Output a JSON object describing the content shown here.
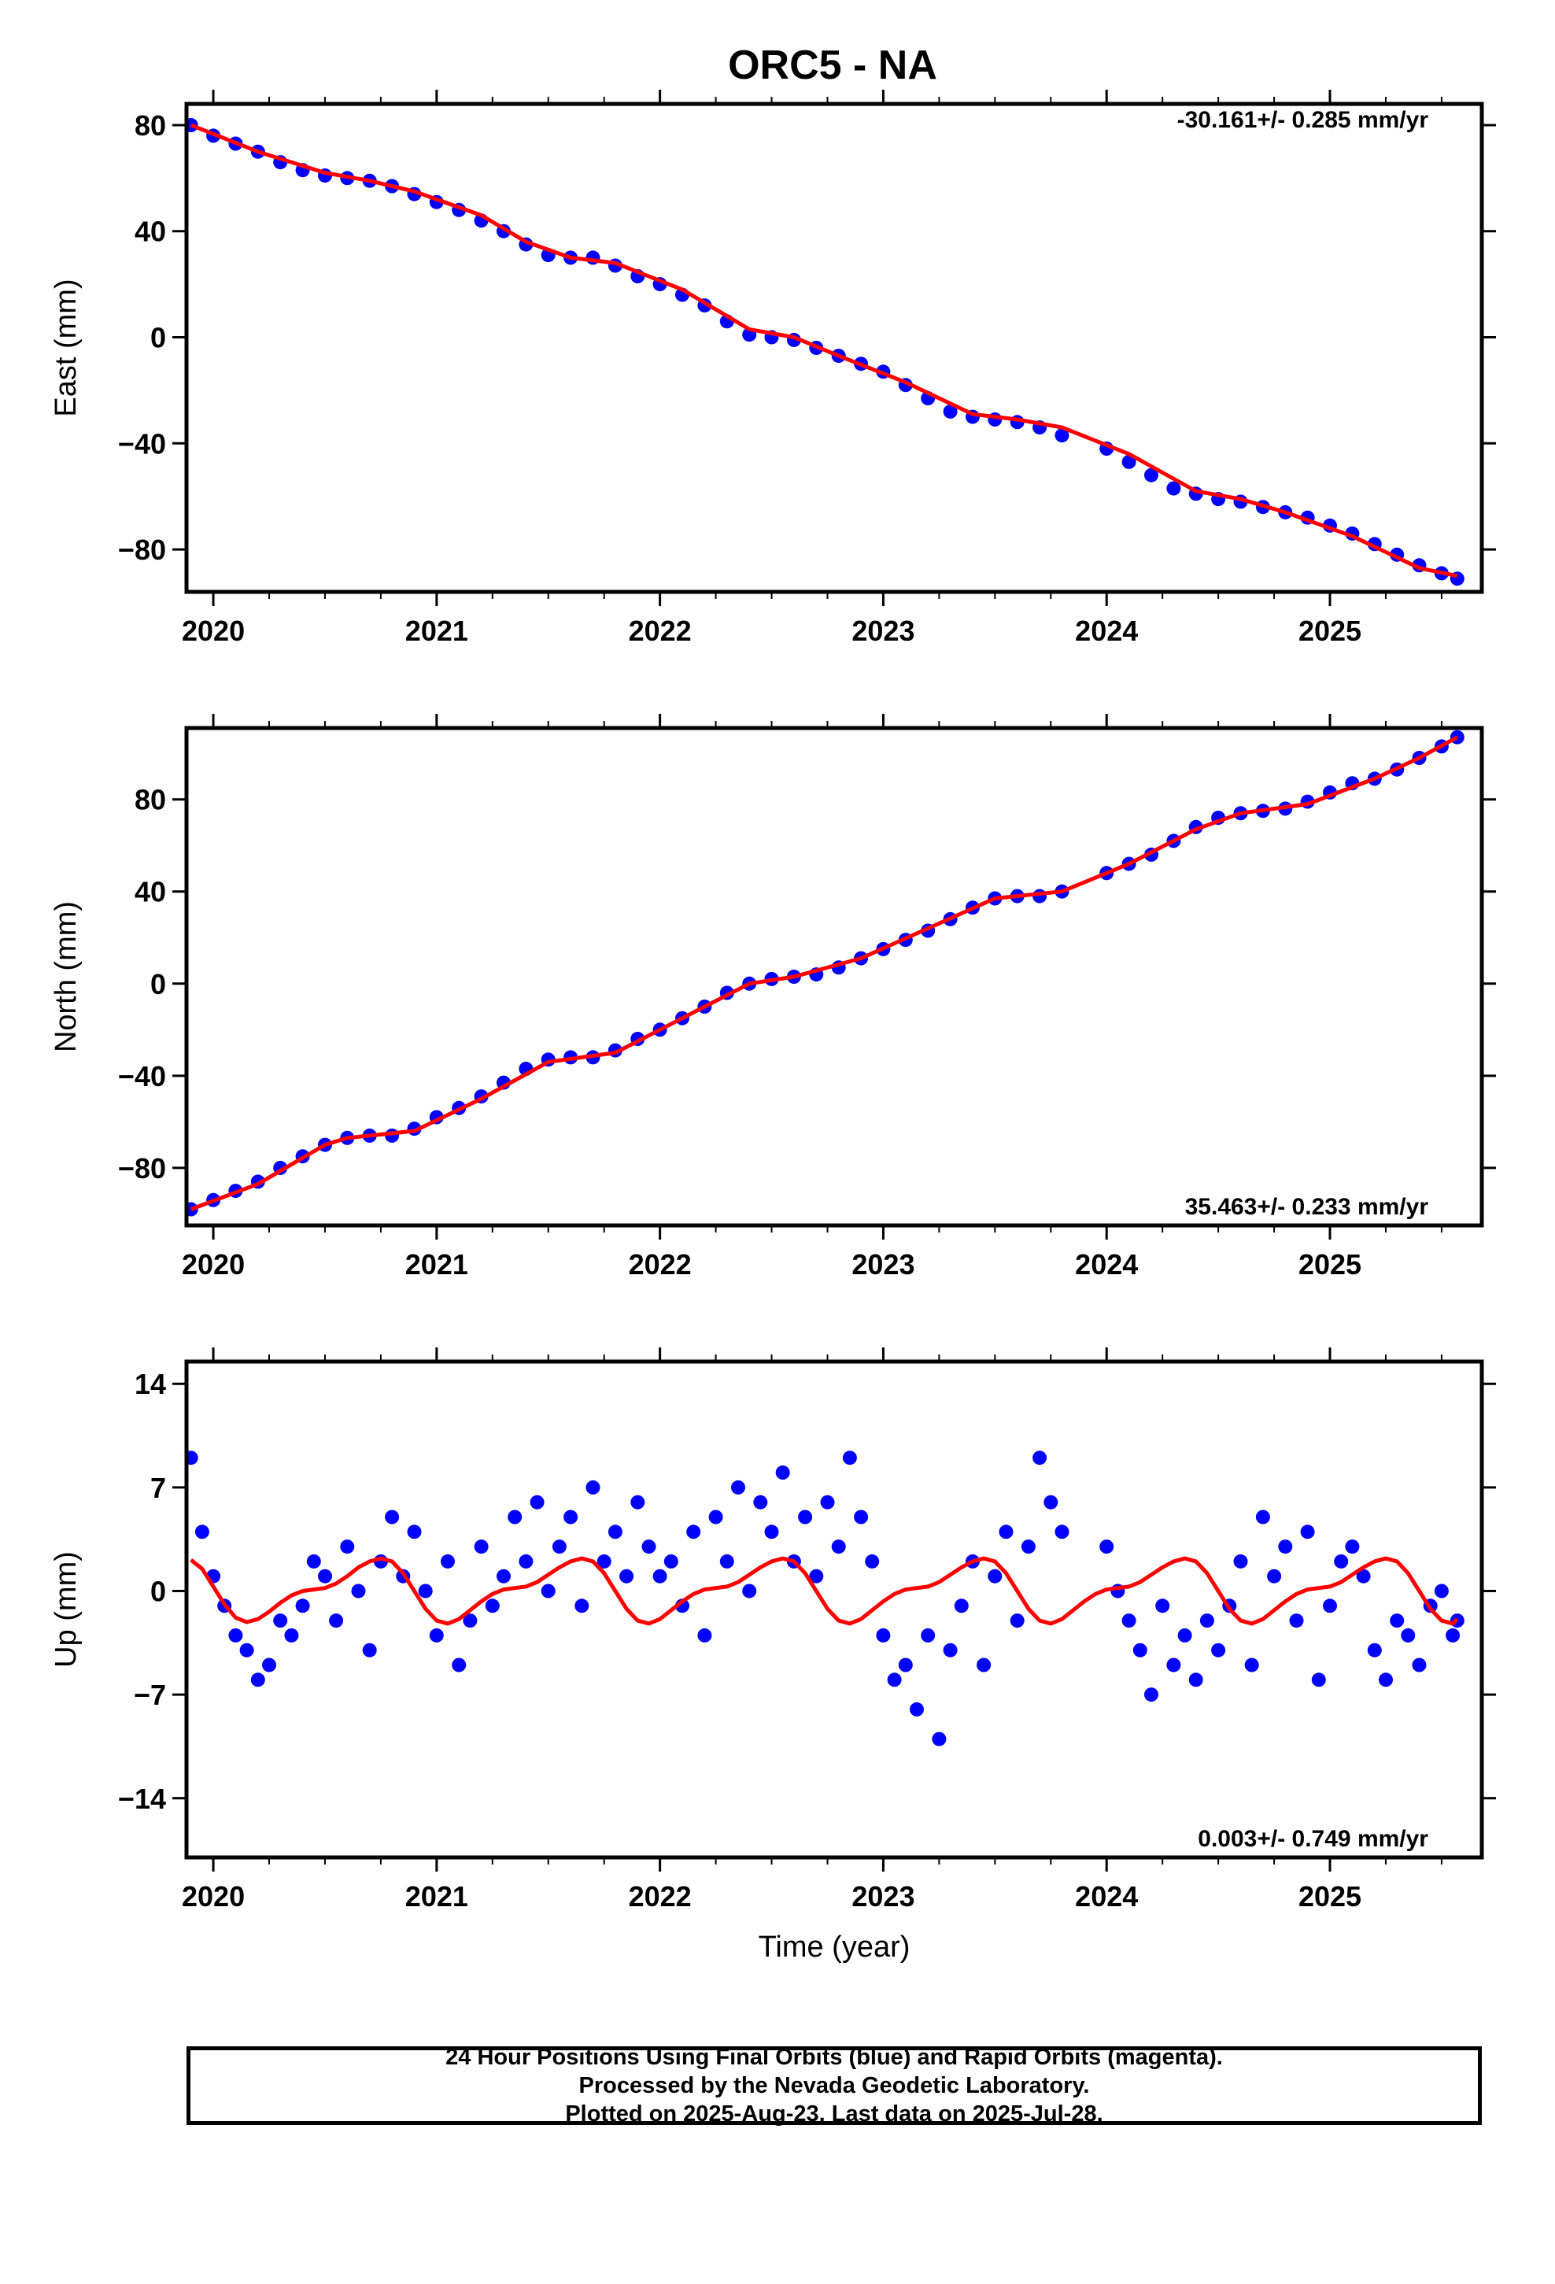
{
  "title": "ORC5 - NA",
  "colors": {
    "points": "#0000ff",
    "fit": "#ff0000",
    "frame": "#000000"
  },
  "chart_data": [
    {
      "type": "scatter",
      "ylabel": "East (mm)",
      "xlabel": "",
      "xlim": [
        2019.88,
        2025.68
      ],
      "ylim": [
        -96,
        88
      ],
      "xticks": [
        2020,
        2021,
        2022,
        2023,
        2024,
        2025
      ],
      "yticks": [
        80,
        40,
        0,
        -40,
        -80
      ],
      "rate_text": "-30.161+/- 0.285 mm/yr",
      "rate_position": "top-right",
      "series": [
        {
          "role": "observations",
          "x": [
            2019.9,
            2020.0,
            2020.1,
            2020.2,
            2020.3,
            2020.4,
            2020.5,
            2020.6,
            2020.7,
            2020.8,
            2020.9,
            2021.0,
            2021.1,
            2021.2,
            2021.3,
            2021.4,
            2021.5,
            2021.6,
            2021.7,
            2021.8,
            2021.9,
            2022.0,
            2022.1,
            2022.2,
            2022.3,
            2022.4,
            2022.5,
            2022.6,
            2022.7,
            2022.8,
            2022.9,
            2023.0,
            2023.1,
            2023.2,
            2023.3,
            2023.4,
            2023.5,
            2023.6,
            2023.7,
            2023.8,
            2024.0,
            2024.1,
            2024.2,
            2024.3,
            2024.4,
            2024.5,
            2024.6,
            2024.7,
            2024.8,
            2024.9,
            2025.0,
            2025.1,
            2025.2,
            2025.3,
            2025.4,
            2025.5,
            2025.57
          ],
          "y": [
            80,
            76,
            73,
            70,
            66,
            63,
            61,
            60,
            59,
            57,
            54,
            51,
            48,
            44,
            40,
            35,
            31,
            30,
            30,
            27,
            23,
            20,
            16,
            12,
            6,
            1,
            0,
            -1,
            -4,
            -7,
            -10,
            -13,
            -18,
            -23,
            -28,
            -30,
            -31,
            -32,
            -34,
            -37,
            -42,
            -47,
            -52,
            -57,
            -59,
            -61,
            -62,
            -64,
            -66,
            -68,
            -71,
            -74,
            -78,
            -82,
            -86,
            -89,
            -91
          ]
        },
        {
          "role": "fit",
          "x": [
            2019.9,
            2020.2,
            2020.5,
            2020.7,
            2020.9,
            2021.2,
            2021.4,
            2021.6,
            2021.8,
            2022.1,
            2022.4,
            2022.6,
            2022.8,
            2023.1,
            2023.4,
            2023.6,
            2023.8,
            2024.1,
            2024.4,
            2024.6,
            2024.8,
            2025.1,
            2025.4,
            2025.57
          ],
          "y": [
            80,
            70,
            62,
            59,
            55,
            46,
            36,
            30,
            28,
            18,
            3,
            0,
            -7,
            -17,
            -29,
            -31,
            -34,
            -44,
            -58,
            -61,
            -66,
            -75,
            -87,
            -90
          ]
        }
      ]
    },
    {
      "type": "scatter",
      "ylabel": "North (mm)",
      "xlabel": "",
      "xlim": [
        2019.88,
        2025.68
      ],
      "ylim": [
        -105,
        111
      ],
      "xticks": [
        2020,
        2021,
        2022,
        2023,
        2024,
        2025
      ],
      "yticks": [
        80,
        40,
        0,
        -40,
        -80
      ],
      "rate_text": "35.463+/- 0.233 mm/yr",
      "rate_position": "bottom-right",
      "series": [
        {
          "role": "observations",
          "x": [
            2019.9,
            2020.0,
            2020.1,
            2020.2,
            2020.3,
            2020.4,
            2020.5,
            2020.6,
            2020.7,
            2020.8,
            2020.9,
            2021.0,
            2021.1,
            2021.2,
            2021.3,
            2021.4,
            2021.5,
            2021.6,
            2021.7,
            2021.8,
            2021.9,
            2022.0,
            2022.1,
            2022.2,
            2022.3,
            2022.4,
            2022.5,
            2022.6,
            2022.7,
            2022.8,
            2022.9,
            2023.0,
            2023.1,
            2023.2,
            2023.3,
            2023.4,
            2023.5,
            2023.6,
            2023.7,
            2023.8,
            2024.0,
            2024.1,
            2024.2,
            2024.3,
            2024.4,
            2024.5,
            2024.6,
            2024.7,
            2024.8,
            2024.9,
            2025.0,
            2025.1,
            2025.2,
            2025.3,
            2025.4,
            2025.5,
            2025.57
          ],
          "y": [
            -98,
            -94,
            -90,
            -86,
            -80,
            -75,
            -70,
            -67,
            -66,
            -66,
            -63,
            -58,
            -54,
            -49,
            -43,
            -37,
            -33,
            -32,
            -32,
            -29,
            -24,
            -20,
            -15,
            -10,
            -4,
            0,
            2,
            3,
            4,
            7,
            11,
            15,
            19,
            23,
            28,
            33,
            37,
            38,
            38,
            40,
            48,
            52,
            56,
            62,
            68,
            72,
            74,
            75,
            76,
            79,
            83,
            87,
            89,
            93,
            98,
            103,
            107
          ]
        },
        {
          "role": "fit",
          "x": [
            2019.9,
            2020.2,
            2020.5,
            2020.6,
            2020.9,
            2021.2,
            2021.5,
            2021.8,
            2022.1,
            2022.4,
            2022.6,
            2022.9,
            2023.2,
            2023.5,
            2023.8,
            2024.1,
            2024.4,
            2024.6,
            2024.9,
            2025.2,
            2025.4,
            2025.57
          ],
          "y": [
            -98,
            -87,
            -70,
            -67,
            -64,
            -50,
            -34,
            -30,
            -15,
            0,
            3,
            11,
            24,
            37,
            40,
            52,
            67,
            74,
            78,
            89,
            98,
            107
          ]
        }
      ]
    },
    {
      "type": "scatter",
      "ylabel": "Up (mm)",
      "xlabel": "Time (year)",
      "xlim": [
        2019.88,
        2025.68
      ],
      "ylim": [
        -18,
        15.5
      ],
      "xticks": [
        2020,
        2021,
        2022,
        2023,
        2024,
        2025
      ],
      "yticks": [
        14,
        7,
        0,
        -7,
        -14
      ],
      "rate_text": "0.003+/- 0.749 mm/yr",
      "rate_position": "bottom-right",
      "series": [
        {
          "role": "observations",
          "x": [
            2019.9,
            2019.95,
            2020.0,
            2020.05,
            2020.1,
            2020.15,
            2020.2,
            2020.25,
            2020.3,
            2020.35,
            2020.4,
            2020.45,
            2020.5,
            2020.55,
            2020.6,
            2020.65,
            2020.7,
            2020.75,
            2020.8,
            2020.85,
            2020.9,
            2020.95,
            2021.0,
            2021.05,
            2021.1,
            2021.15,
            2021.2,
            2021.25,
            2021.3,
            2021.35,
            2021.4,
            2021.45,
            2021.5,
            2021.55,
            2021.6,
            2021.65,
            2021.7,
            2021.75,
            2021.8,
            2021.85,
            2021.9,
            2021.95,
            2022.0,
            2022.05,
            2022.1,
            2022.15,
            2022.2,
            2022.25,
            2022.3,
            2022.35,
            2022.4,
            2022.45,
            2022.5,
            2022.55,
            2022.6,
            2022.65,
            2022.7,
            2022.75,
            2022.8,
            2022.85,
            2022.9,
            2022.95,
            2023.0,
            2023.05,
            2023.1,
            2023.15,
            2023.2,
            2023.25,
            2023.3,
            2023.35,
            2023.4,
            2023.45,
            2023.5,
            2023.55,
            2023.6,
            2023.65,
            2023.7,
            2023.75,
            2023.8,
            2024.0,
            2024.05,
            2024.1,
            2024.15,
            2024.2,
            2024.25,
            2024.3,
            2024.35,
            2024.4,
            2024.45,
            2024.5,
            2024.55,
            2024.6,
            2024.65,
            2024.7,
            2024.75,
            2024.8,
            2024.85,
            2024.9,
            2024.95,
            2025.0,
            2025.05,
            2025.1,
            2025.15,
            2025.2,
            2025.25,
            2025.3,
            2025.35,
            2025.4,
            2025.45,
            2025.5,
            2025.55,
            2025.57
          ],
          "y": [
            9,
            4,
            1,
            -1,
            -3,
            -4,
            -6,
            -5,
            -2,
            -3,
            -1,
            2,
            1,
            -2,
            3,
            0,
            -4,
            2,
            5,
            1,
            4,
            0,
            -3,
            2,
            -5,
            -2,
            3,
            -1,
            1,
            5,
            2,
            6,
            0,
            3,
            5,
            -1,
            7,
            2,
            4,
            1,
            6,
            3,
            1,
            2,
            -1,
            4,
            -3,
            5,
            2,
            7,
            0,
            6,
            4,
            8,
            2,
            5,
            1,
            6,
            3,
            9,
            5,
            2,
            -3,
            -6,
            -5,
            -8,
            -3,
            -10,
            -4,
            -1,
            2,
            -5,
            1,
            4,
            -2,
            3,
            9,
            6,
            4,
            3,
            0,
            -2,
            -4,
            -7,
            -1,
            -5,
            -3,
            -6,
            -2,
            -4,
            -1,
            2,
            -5,
            5,
            1,
            3,
            -2,
            4,
            -6,
            -1,
            2,
            3,
            1,
            -4,
            -6,
            -2,
            -3,
            -5,
            -1,
            0,
            -3,
            -2
          ]
        },
        {
          "role": "fit",
          "x": [
            2019.9,
            2019.95,
            2020.0,
            2020.05,
            2020.1,
            2020.15,
            2020.2,
            2020.25,
            2020.3,
            2020.35,
            2020.4,
            2020.45,
            2020.5,
            2020.55,
            2020.6,
            2020.65,
            2020.7,
            2020.75,
            2020.8,
            2020.85,
            2020.9,
            2020.95,
            2021.0,
            2021.05,
            2021.1,
            2021.15,
            2021.2,
            2021.25,
            2021.3,
            2021.35,
            2021.4,
            2021.45,
            2021.5,
            2021.55,
            2021.6,
            2021.65,
            2021.7,
            2021.75,
            2021.8,
            2021.85,
            2021.9,
            2021.95,
            2022.0,
            2022.05,
            2022.1,
            2022.15,
            2022.2,
            2022.25,
            2022.3,
            2022.35,
            2022.4,
            2022.45,
            2022.5,
            2022.55,
            2022.6,
            2022.65,
            2022.7,
            2022.75,
            2022.8,
            2022.85,
            2022.9,
            2022.95,
            2023.0,
            2023.05,
            2023.1,
            2023.15,
            2023.2,
            2023.25,
            2023.3,
            2023.35,
            2023.4,
            2023.45,
            2023.5,
            2023.55,
            2023.6,
            2023.65,
            2023.7,
            2023.75,
            2023.8,
            2023.85,
            2023.9,
            2023.95,
            2024.0,
            2024.05,
            2024.1,
            2024.15,
            2024.2,
            2024.25,
            2024.3,
            2024.35,
            2024.4,
            2024.45,
            2024.5,
            2024.55,
            2024.6,
            2024.65,
            2024.7,
            2024.75,
            2024.8,
            2024.85,
            2024.9,
            2024.95,
            2025.0,
            2025.05,
            2025.1,
            2025.15,
            2025.2,
            2025.25,
            2025.3,
            2025.35,
            2025.4,
            2025.45,
            2025.5,
            2025.55,
            2025.57
          ],
          "y": [
            2.1,
            1.5,
            0.3,
            -0.9,
            -1.8,
            -2.1,
            -1.9,
            -1.4,
            -0.8,
            -0.3,
            0.0,
            0.1,
            0.2,
            0.5,
            1.0,
            1.6,
            2.0,
            2.2,
            2.0,
            1.2,
            0.0,
            -1.2,
            -2.0,
            -2.2,
            -1.9,
            -1.3,
            -0.7,
            -0.2,
            0.1,
            0.2,
            0.3,
            0.6,
            1.1,
            1.6,
            2.0,
            2.2,
            2.0,
            1.2,
            0.0,
            -1.2,
            -2.0,
            -2.2,
            -1.9,
            -1.3,
            -0.7,
            -0.2,
            0.1,
            0.2,
            0.3,
            0.6,
            1.1,
            1.6,
            2.0,
            2.2,
            2.0,
            1.2,
            0.0,
            -1.2,
            -2.0,
            -2.2,
            -1.9,
            -1.3,
            -0.7,
            -0.2,
            0.1,
            0.2,
            0.3,
            0.6,
            1.1,
            1.6,
            2.0,
            2.2,
            2.0,
            1.2,
            0.0,
            -1.2,
            -2.0,
            -2.2,
            -1.9,
            -1.3,
            -0.7,
            -0.2,
            0.1,
            0.2,
            0.3,
            0.6,
            1.1,
            1.6,
            2.0,
            2.2,
            2.0,
            1.2,
            0.0,
            -1.2,
            -2.0,
            -2.2,
            -1.9,
            -1.3,
            -0.7,
            -0.2,
            0.1,
            0.2,
            0.3,
            0.6,
            1.1,
            1.6,
            2.0,
            2.2,
            2.0,
            1.2,
            0.0,
            -1.2,
            -2.0,
            -2.2,
            -1.9
          ]
        }
      ]
    }
  ],
  "footer": {
    "line1": "24 Hour Positions Using Final Orbits (blue) and Rapid Orbits (magenta).",
    "line2": "Processed by the Nevada Geodetic Laboratory.",
    "line3": "Plotted on 2025-Aug-23. Last data on 2025-Jul-28."
  }
}
